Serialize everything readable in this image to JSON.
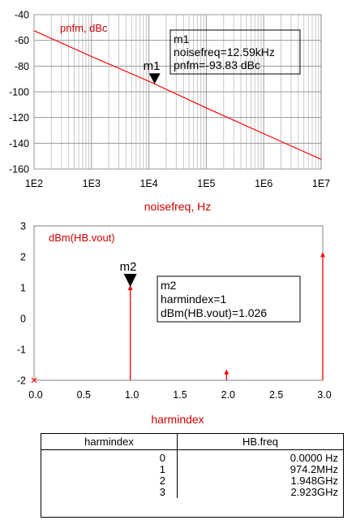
{
  "chart_data": [
    {
      "type": "line",
      "ylabel": "pnfm, dBc",
      "xlabel": "noisefreq, Hz",
      "xscale": "log",
      "xlim": [
        100,
        10000000
      ],
      "ylim": [
        -160,
        -40
      ],
      "yticks": [
        "-40",
        "-60",
        "-80",
        "-100",
        "-120",
        "-140",
        "-160"
      ],
      "xticks": [
        "1E2",
        "1E3",
        "1E4",
        "1E5",
        "1E6",
        "1E7"
      ],
      "grid": true,
      "line_color": "#ff0000",
      "series": [
        {
          "x": [
            100,
            1000,
            10000,
            100000,
            1000000,
            10000000
          ],
          "y": [
            -52.5,
            -72.5,
            -91.8,
            -112.5,
            -132.5,
            -152.5
          ]
        }
      ],
      "marker": {
        "name": "m1",
        "x": 12590,
        "y": -93.83,
        "lines": [
          "m1",
          "noisefreq=12.59kHz",
          "pnfm=-93.83 dBc"
        ]
      }
    },
    {
      "type": "bar",
      "ylabel": "dBm(HB.vout)",
      "xlabel": "harmindex",
      "xlim": [
        0,
        3
      ],
      "ylim": [
        -2,
        3
      ],
      "yticks": [
        "3",
        "2",
        "1",
        "0",
        "-1",
        "-2"
      ],
      "xticks": [
        "0.0",
        "0.5",
        "1.0",
        "1.5",
        "2.0",
        "2.5",
        "3.0"
      ],
      "grid": false,
      "line_color": "#ff0000",
      "x": [
        0,
        1,
        2,
        3
      ],
      "values": [
        -2,
        1.026,
        -1.7,
        2.1
      ],
      "marker": {
        "name": "m2",
        "x": 1,
        "y": 1.026,
        "lines": [
          "m2",
          "harmindex=1",
          "dBm(HB.vout)=1.026"
        ]
      }
    }
  ],
  "table": {
    "headers": [
      "harmindex",
      "HB.freq"
    ],
    "rows": [
      [
        "0",
        "0.0000 Hz"
      ],
      [
        "1",
        "974.2MHz"
      ],
      [
        "2",
        "1.948GHz"
      ],
      [
        "3",
        "2.923GHz"
      ]
    ]
  }
}
